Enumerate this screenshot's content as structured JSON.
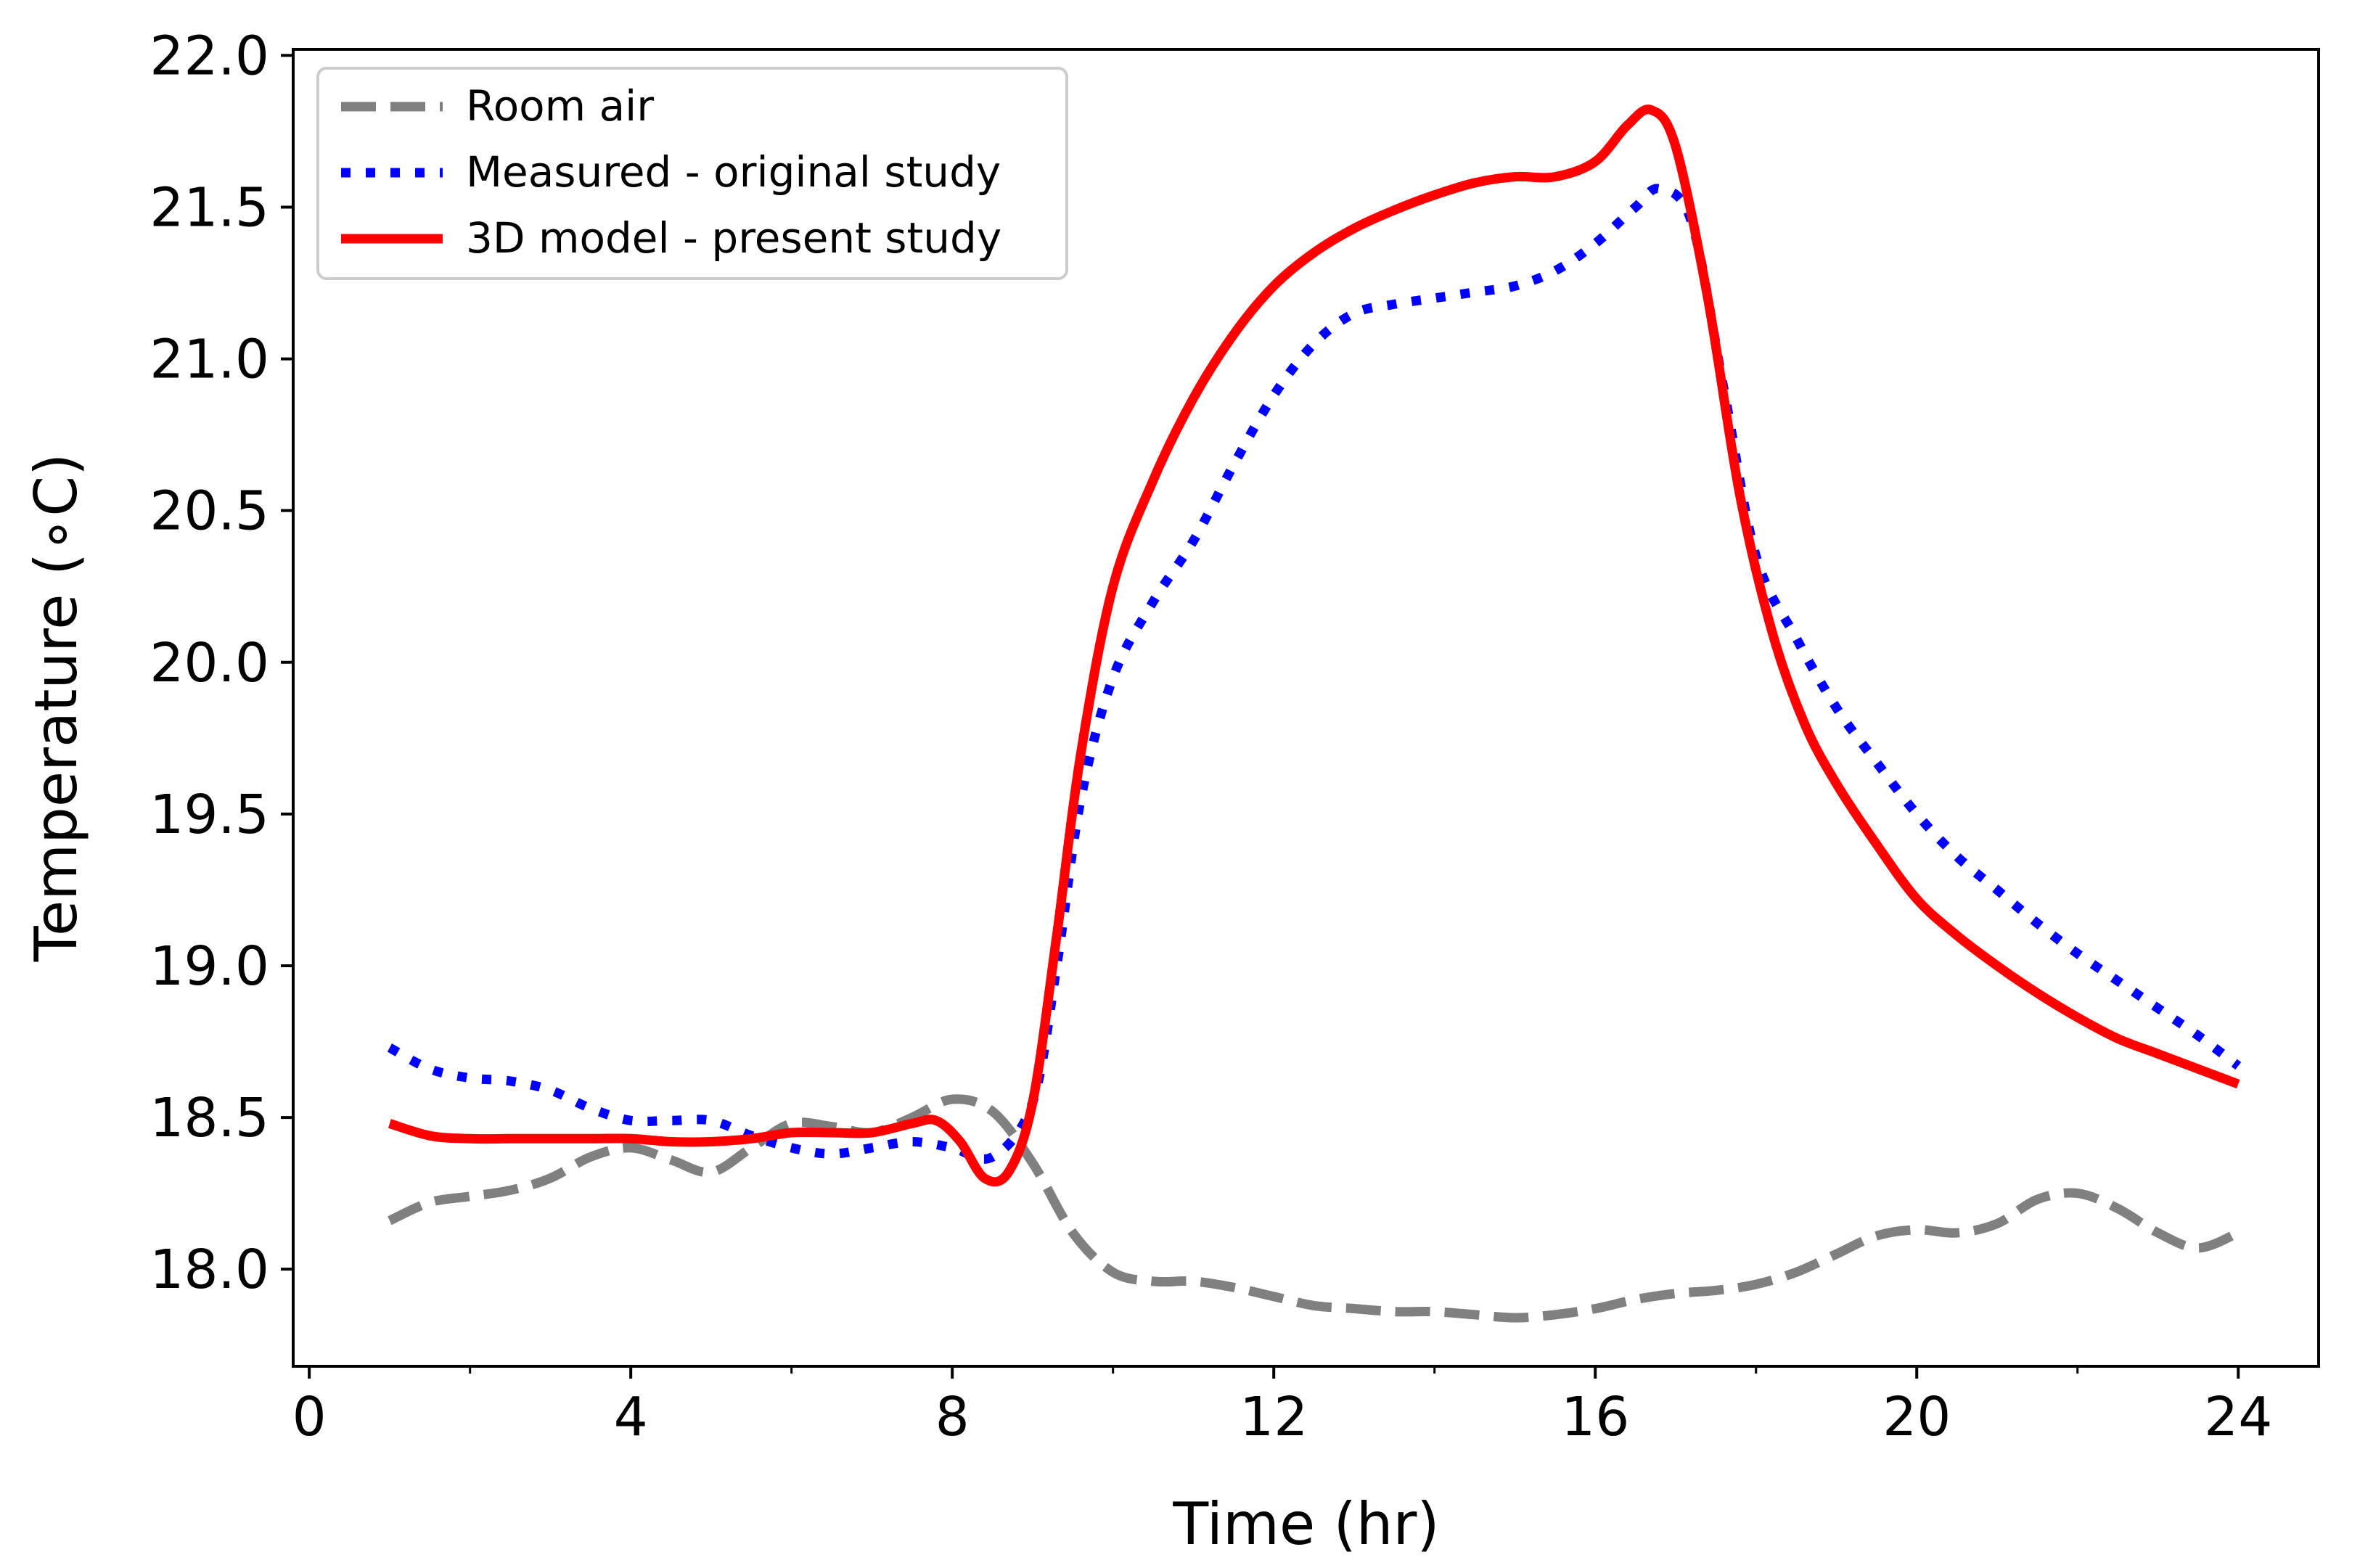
{
  "chart_data": {
    "type": "line",
    "title": "",
    "xlabel": "Time (hr)",
    "ylabel": "Temperature (∘C)",
    "xlim": [
      -0.2,
      25.0
    ],
    "ylim": [
      17.68,
      22.02
    ],
    "x_ticks": [
      0,
      4,
      8,
      12,
      16,
      20,
      24
    ],
    "x_minor_ticks": [
      2,
      6,
      10,
      14,
      18,
      22
    ],
    "y_ticks": [
      18.0,
      18.5,
      19.0,
      19.5,
      20.0,
      20.5,
      21.0,
      21.5,
      22.0
    ],
    "y_tick_labels": [
      "18.0",
      "18.5",
      "19.0",
      "19.5",
      "20.0",
      "20.5",
      "21.0",
      "21.5",
      "22.0"
    ],
    "grid": false,
    "legend_position": "top-left",
    "series": [
      {
        "name": "Room air",
        "style": "dashed",
        "color": "#808080",
        "x": [
          1,
          1.5,
          2,
          2.5,
          3,
          3.5,
          4,
          4.5,
          5,
          5.5,
          6,
          6.5,
          7,
          7.5,
          8,
          8.5,
          9,
          9.5,
          10,
          10.5,
          11,
          11.5,
          12,
          12.5,
          13,
          13.5,
          14,
          14.5,
          15,
          15.5,
          16,
          16.5,
          17,
          17.5,
          18,
          18.5,
          19,
          19.5,
          20,
          20.5,
          21,
          21.5,
          22,
          22.5,
          23,
          23.5,
          24
        ],
        "y": [
          18.16,
          18.22,
          18.24,
          18.26,
          18.3,
          18.37,
          18.4,
          18.36,
          18.32,
          18.4,
          18.48,
          18.47,
          18.45,
          18.5,
          18.56,
          18.52,
          18.35,
          18.12,
          17.99,
          17.96,
          17.96,
          17.94,
          17.91,
          17.88,
          17.87,
          17.86,
          17.86,
          17.85,
          17.84,
          17.85,
          17.87,
          17.9,
          17.92,
          17.93,
          17.95,
          17.99,
          18.05,
          18.11,
          18.13,
          18.12,
          18.15,
          18.23,
          18.25,
          18.2,
          18.12,
          18.07,
          18.12
        ]
      },
      {
        "name": "Measured - original study",
        "style": "dotted",
        "color": "#0000ff",
        "x": [
          1,
          1.5,
          2,
          2.5,
          3,
          3.5,
          4,
          4.5,
          5,
          5.5,
          6,
          6.5,
          7,
          7.5,
          8,
          8.5,
          9,
          9.3,
          9.6,
          10,
          10.5,
          11,
          11.5,
          12,
          12.5,
          13,
          13.5,
          14,
          14.5,
          15,
          15.5,
          16,
          16.5,
          16.8,
          17.2,
          17.6,
          18,
          18.5,
          19,
          19.5,
          20,
          20.5,
          21,
          21.5,
          22,
          22.5,
          23,
          23.5,
          24
        ],
        "y": [
          18.73,
          18.66,
          18.63,
          18.62,
          18.59,
          18.53,
          18.49,
          18.49,
          18.49,
          18.44,
          18.4,
          18.38,
          18.4,
          18.42,
          18.4,
          18.37,
          18.55,
          19.0,
          19.55,
          19.95,
          20.2,
          20.4,
          20.65,
          20.88,
          21.05,
          21.15,
          21.18,
          21.2,
          21.22,
          21.24,
          21.29,
          21.38,
          21.5,
          21.56,
          21.45,
          20.9,
          20.35,
          20.08,
          19.85,
          19.67,
          19.5,
          19.36,
          19.25,
          19.14,
          19.04,
          18.95,
          18.86,
          18.77,
          18.67
        ]
      },
      {
        "name": "3D model - present study",
        "style": "solid",
        "color": "#ff0000",
        "x": [
          1,
          1.5,
          2,
          2.5,
          3,
          3.5,
          4,
          4.5,
          5,
          5.5,
          6,
          6.5,
          7,
          7.5,
          7.8,
          8.1,
          8.4,
          8.7,
          9.0,
          9.3,
          9.6,
          10,
          10.5,
          11,
          11.5,
          12,
          12.5,
          13,
          13.5,
          14,
          14.5,
          15,
          15.5,
          16,
          16.4,
          16.7,
          17,
          17.4,
          17.8,
          18.2,
          18.6,
          19,
          19.5,
          20,
          20.5,
          21,
          21.5,
          22,
          22.5,
          23,
          23.5,
          24
        ],
        "y": [
          18.48,
          18.44,
          18.43,
          18.43,
          18.43,
          18.43,
          18.43,
          18.42,
          18.42,
          18.43,
          18.45,
          18.45,
          18.45,
          18.48,
          18.49,
          18.42,
          18.3,
          18.32,
          18.55,
          19.1,
          19.7,
          20.25,
          20.6,
          20.87,
          21.08,
          21.24,
          21.35,
          21.43,
          21.49,
          21.54,
          21.58,
          21.6,
          21.6,
          21.65,
          21.77,
          21.82,
          21.7,
          21.2,
          20.55,
          20.1,
          19.8,
          19.6,
          19.4,
          19.22,
          19.1,
          19.0,
          18.91,
          18.83,
          18.76,
          18.71,
          18.66,
          18.61
        ]
      }
    ]
  }
}
